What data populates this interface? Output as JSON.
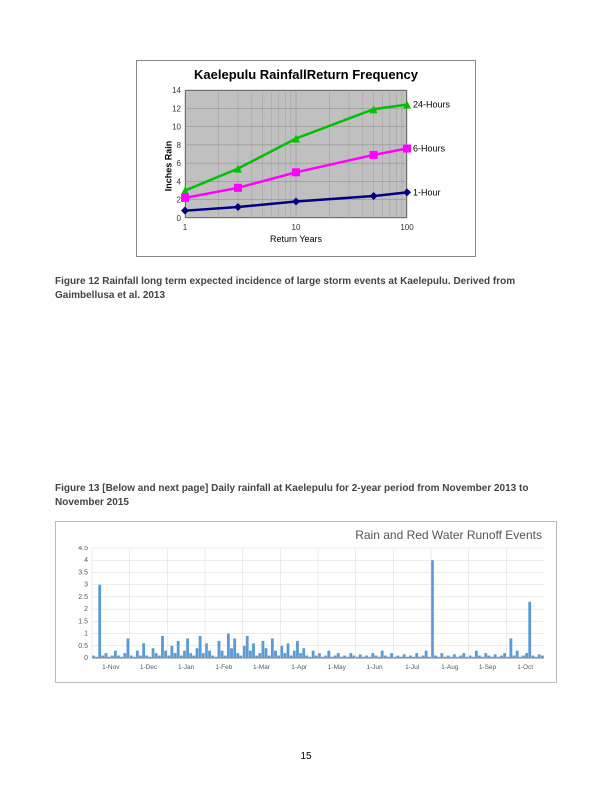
{
  "chart1": {
    "type": "line",
    "title": "Kaelepulu RainfallReturn Frequency",
    "xlabel": "Return Years",
    "ylabel": "Inches Rain",
    "x_scale": "log",
    "xlim": [
      1,
      100
    ],
    "xticks": [
      1,
      10,
      100
    ],
    "ylim": [
      0,
      14
    ],
    "ytick_step": 2,
    "background_color": "#c0c0c0",
    "grid_color": "#888888",
    "series": [
      {
        "name": "24-Hours",
        "label": "24-Hours",
        "color": "#00c000",
        "marker": "triangle",
        "marker_color": "#00c000",
        "line_width": 2.5,
        "x": [
          1,
          3,
          10,
          50,
          100
        ],
        "y": [
          3.0,
          5.4,
          8.7,
          11.9,
          12.4
        ]
      },
      {
        "name": "6-Hours",
        "label": "6-Hours",
        "color": "#ff00ff",
        "marker": "square",
        "marker_color": "#ff00ff",
        "line_width": 2.5,
        "x": [
          1,
          3,
          10,
          50,
          100
        ],
        "y": [
          2.2,
          3.3,
          5.0,
          6.9,
          7.6
        ]
      },
      {
        "name": "1-Hour",
        "label": "1-Hour",
        "color": "#000080",
        "marker": "diamond",
        "marker_color": "#000080",
        "line_width": 2.5,
        "x": [
          1,
          3,
          10,
          50,
          100
        ],
        "y": [
          0.8,
          1.2,
          1.8,
          2.4,
          2.8
        ]
      }
    ]
  },
  "caption1": "Figure 12  Rainfall long term expected incidence of large storm events at Kaelepulu.  Derived from Gaimbellusa et al. 2013",
  "caption2": "Figure 13   [Below and next page] Daily rainfall at Kaelepulu for 2-year period from November 2013 to November 2015",
  "chart2": {
    "type": "bar",
    "title": "Rain and Red Water Runoff Events",
    "ylim": [
      0,
      4.5
    ],
    "ytick_step": 0.5,
    "bar_color": "#5b9bd5",
    "grid_color": "#d9d9d9",
    "text_color": "#595959",
    "x_labels": [
      "1-Nov",
      "1-Dec",
      "1-Jan",
      "1-Feb",
      "1-Mar",
      "1-Apr",
      "1-May",
      "1-Jun",
      "1-Jul",
      "1-Aug",
      "1-Sep",
      "1-Oct"
    ],
    "values": [
      0.1,
      0.05,
      3.0,
      0.1,
      0.2,
      0.05,
      0.1,
      0.3,
      0.1,
      0.05,
      0.2,
      0.8,
      0.1,
      0.05,
      0.3,
      0.1,
      0.6,
      0.1,
      0.05,
      0.4,
      0.2,
      0.1,
      0.9,
      0.3,
      0.1,
      0.5,
      0.2,
      0.7,
      0.1,
      0.3,
      0.8,
      0.2,
      0.1,
      0.4,
      0.9,
      0.2,
      0.6,
      0.3,
      0.1,
      0.05,
      0.7,
      0.3,
      0.1,
      1.0,
      0.4,
      0.8,
      0.2,
      0.1,
      0.5,
      0.9,
      0.3,
      0.6,
      0.1,
      0.2,
      0.7,
      0.4,
      0.1,
      0.8,
      0.3,
      0.1,
      0.5,
      0.2,
      0.6,
      0.1,
      0.3,
      0.7,
      0.2,
      0.4,
      0.1,
      0.05,
      0.3,
      0.1,
      0.2,
      0.05,
      0.1,
      0.3,
      0.05,
      0.1,
      0.2,
      0.05,
      0.1,
      0.05,
      0.2,
      0.1,
      0.05,
      0.15,
      0.05,
      0.1,
      0.05,
      0.2,
      0.1,
      0.05,
      0.3,
      0.1,
      0.05,
      0.2,
      0.05,
      0.1,
      0.05,
      0.15,
      0.05,
      0.1,
      0.05,
      0.2,
      0.05,
      0.1,
      0.3,
      0.05,
      4.0,
      0.1,
      0.05,
      0.2,
      0.05,
      0.1,
      0.05,
      0.15,
      0.05,
      0.1,
      0.2,
      0.05,
      0.1,
      0.05,
      0.3,
      0.1,
      0.05,
      0.2,
      0.1,
      0.05,
      0.15,
      0.05,
      0.1,
      0.2,
      0.05,
      0.8,
      0.1,
      0.3,
      0.05,
      0.1,
      0.2,
      2.3,
      0.1,
      0.05,
      0.15,
      0.1
    ]
  },
  "page_number": "15"
}
